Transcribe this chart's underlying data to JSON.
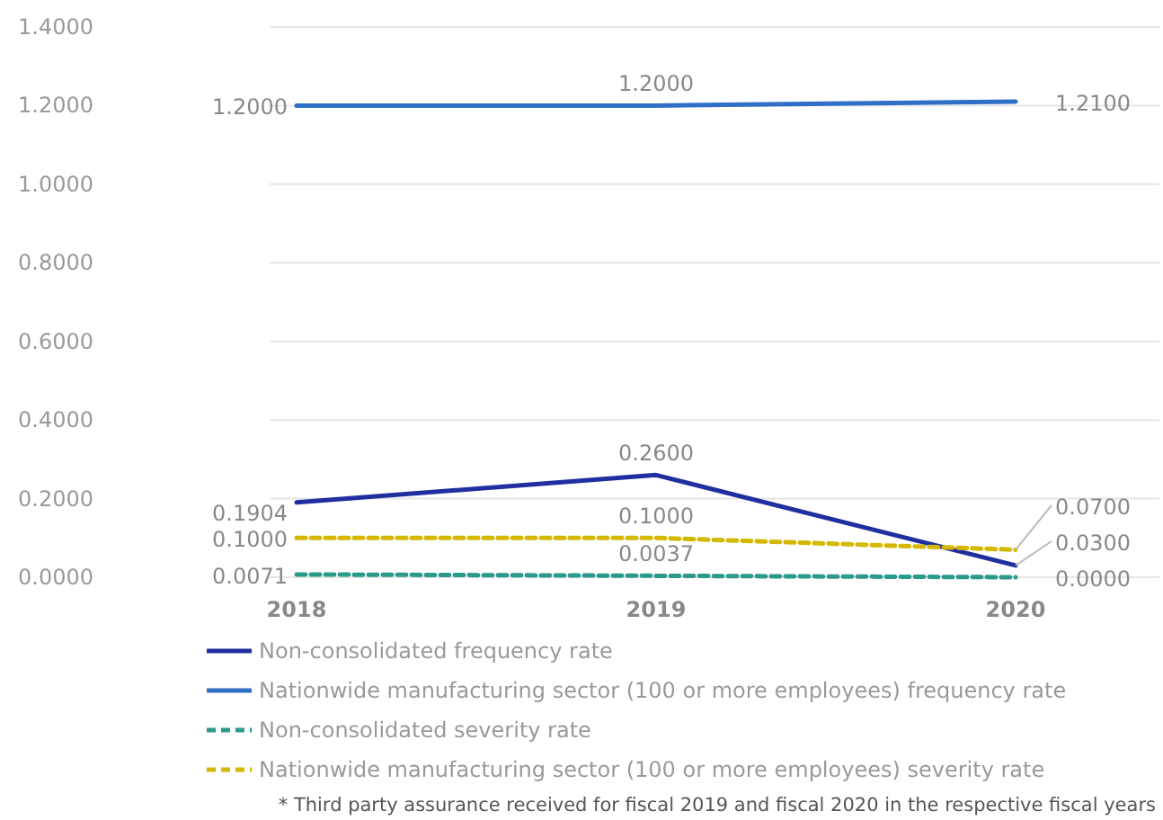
{
  "chart_data": {
    "type": "line",
    "categories": [
      "2018",
      "2019",
      "2020"
    ],
    "series": [
      {
        "name": "Non-consolidated frequency rate",
        "color": "#1f2fa0",
        "values": [
          0.1904,
          0.26,
          0.03
        ],
        "value_labels": [
          "0.1904",
          "0.2600",
          "0.0300"
        ],
        "line_style": "solid"
      },
      {
        "name": "Nationwide manufacturing sector (100 or more employees) frequency rate",
        "color": "#2f6fc8",
        "values": [
          1.2,
          1.2,
          1.21
        ],
        "value_labels": [
          "1.2000",
          "1.2000",
          "1.2100"
        ],
        "line_style": "solid"
      },
      {
        "name": "Non-consolidated severity rate",
        "color": "#2a9a8a",
        "values": [
          0.0071,
          0.0037,
          0.0
        ],
        "value_labels": [
          "0.0071",
          "0.0037",
          "0.0000"
        ],
        "line_style": "dashed"
      },
      {
        "name": "Nationwide manufacturing sector (100 or more employees) severity rate",
        "color": "#d4b800",
        "values": [
          0.1,
          0.1,
          0.07
        ],
        "value_labels": [
          "0.1000",
          "0.1000",
          "0.0700"
        ],
        "line_style": "dashed"
      }
    ],
    "ylim": [
      0,
      1.4
    ],
    "yticks": [
      {
        "value": 0,
        "label": "0.0000"
      },
      {
        "value": 0.2,
        "label": "0.2000"
      },
      {
        "value": 0.4,
        "label": "0.4000"
      },
      {
        "value": 0.6,
        "label": "0.6000"
      },
      {
        "value": 0.8,
        "label": "0.8000"
      },
      {
        "value": 1.0,
        "label": "1.0000"
      },
      {
        "value": 1.2,
        "label": "1.2000"
      },
      {
        "value": 1.4,
        "label": "1.4000"
      }
    ],
    "grid": "y",
    "legend": "bottom",
    "annotations": [
      "* Third party assurance received for fiscal 2019 and fiscal 2020 in the respective fiscal years"
    ]
  }
}
